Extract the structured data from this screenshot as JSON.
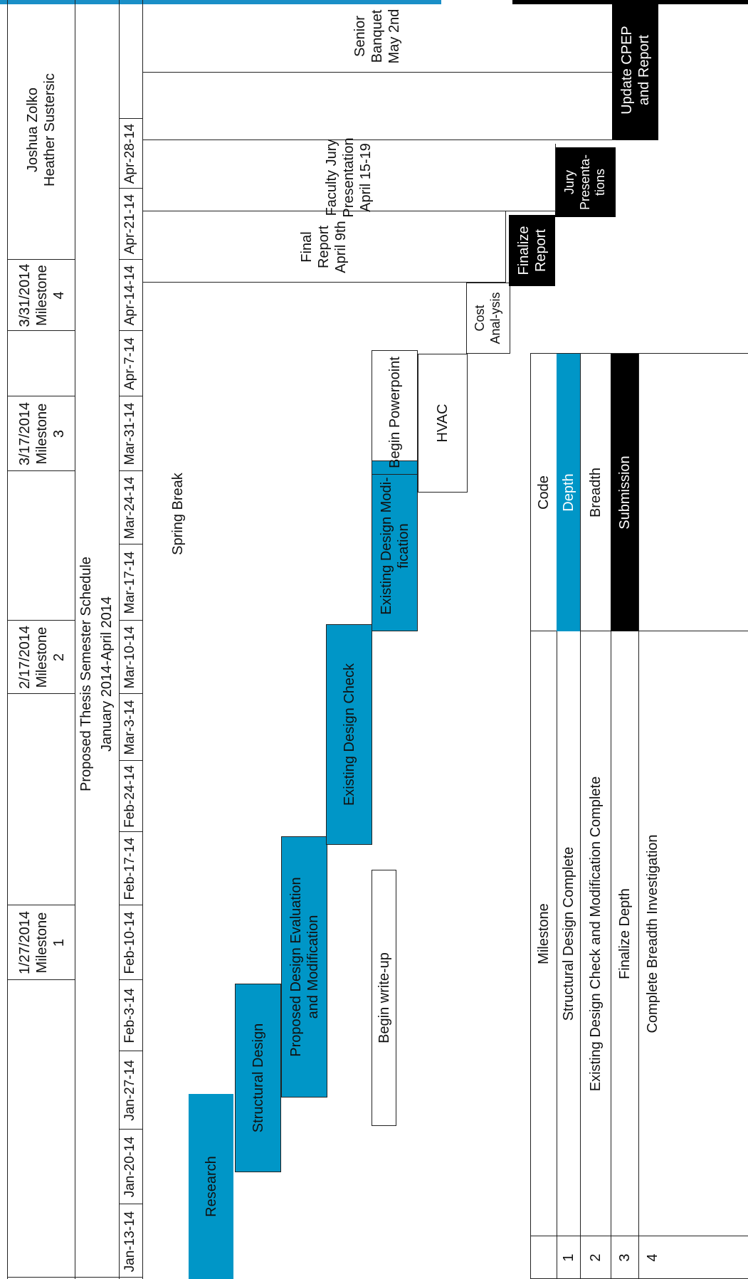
{
  "header": {
    "names": [
      "Joshua Zolko",
      "Heather Sustersic"
    ],
    "title": "Proposed Thesis Semester Schedule",
    "subtitle": "January 2014-April 2014"
  },
  "milestones_top": [
    {
      "date": "1/27/2014",
      "label": "Milestone",
      "num": "1"
    },
    {
      "date": "2/17/2014",
      "label": "Milestone",
      "num": "2"
    },
    {
      "date": "3/17/2014",
      "label": "Milestone",
      "num": "3"
    },
    {
      "date": "3/31/2014",
      "label": "Milestone",
      "num": "4"
    }
  ],
  "weeks": [
    "Jan-13-14",
    "Jan-20-14",
    "Jan-27-14",
    "Feb-3-14",
    "Feb-10-14",
    "Feb-17-14",
    "Feb-24-14",
    "Mar-3-14",
    "Mar-10-14",
    "Mar-17-14",
    "Mar-24-14",
    "Mar-31-14",
    "Apr-7-14",
    "Apr-14-14",
    "Apr-21-14",
    "Apr-28-14"
  ],
  "tasks": {
    "research": "Research",
    "structural_design": "Structural Design",
    "proposed_design": "Proposed Design Evaluation and Modification",
    "begin_writeup": "Begin write-up",
    "existing_check": "Existing Design Check",
    "existing_mod": "Existing Design Modi-fication",
    "begin_ppt": "Begin Powerpoint",
    "hvac": "HVAC",
    "cost": "Cost Anal-ysis",
    "finalize_report": "Finalize Report",
    "jury_pres": "Jury Presenta-tions",
    "update_cpep": "Update CPEP and Report",
    "spring_break": "Spring Break",
    "final_report_note": "Final Report April 9th",
    "faculty_jury_note": "Faculty Jury Presentation April 15-19",
    "senior_banquet_note": "Senior Banquet May 2nd"
  },
  "legend": {
    "headers": {
      "milestone": "Milestone",
      "code": "Code"
    },
    "rows": [
      {
        "num": "1",
        "milestone": "Structural Design Complete",
        "code": "Depth"
      },
      {
        "num": "2",
        "milestone": "Existing Design Check and Modification Complete",
        "code": "Breadth"
      },
      {
        "num": "3",
        "milestone": "Finalize Depth",
        "code": "Submission"
      },
      {
        "num": "4",
        "milestone": "Complete Breadth Investigation",
        "code": ""
      }
    ]
  },
  "colors": {
    "accent": "#0096c7",
    "black": "#000000"
  }
}
